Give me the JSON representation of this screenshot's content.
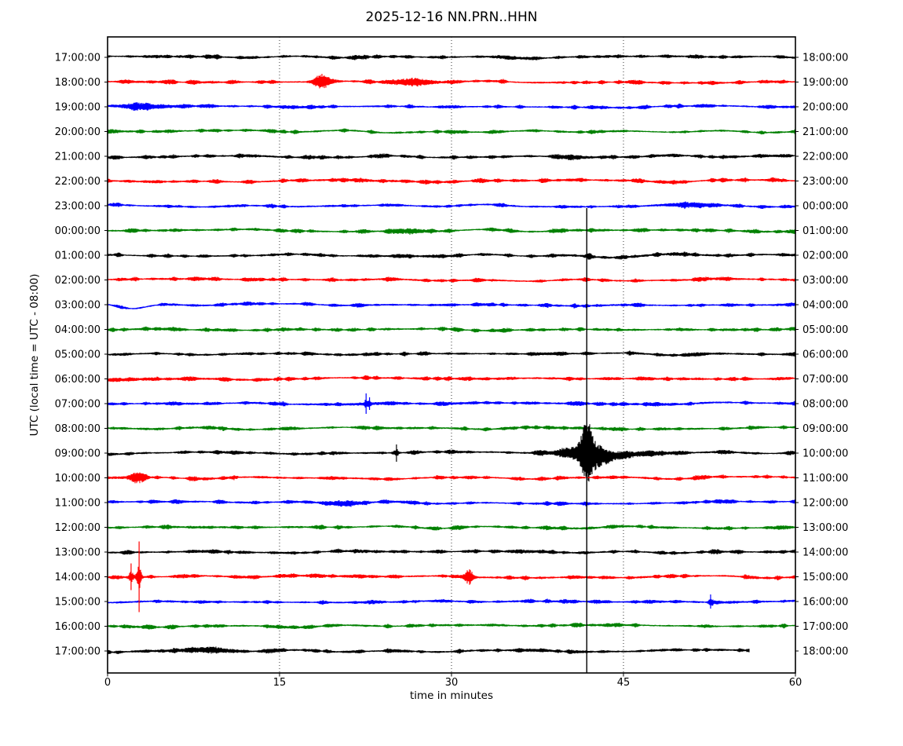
{
  "chart_data": {
    "type": "helicorder",
    "title": "2025-12-16 NN.PRN..HHN",
    "date": "2025-12-16",
    "station_id": "NN.PRN..HHN",
    "xlabel": "time in minutes",
    "ylabel": "UTC (local time = UTC - 08:00)",
    "x_range_minutes": [
      0,
      60
    ],
    "x_ticks": [
      0,
      15,
      30,
      45,
      60
    ],
    "grid_minutes": [
      15,
      30,
      45
    ],
    "color_cycle": [
      "#000000",
      "#ff0000",
      "#0000ff",
      "#008000"
    ],
    "traces": [
      {
        "left_label": "17:00:00",
        "right_label": "18:00:00",
        "color": "#000000"
      },
      {
        "left_label": "18:00:00",
        "right_label": "19:00:00",
        "color": "#ff0000"
      },
      {
        "left_label": "19:00:00",
        "right_label": "20:00:00",
        "color": "#0000ff"
      },
      {
        "left_label": "20:00:00",
        "right_label": "21:00:00",
        "color": "#008000"
      },
      {
        "left_label": "21:00:00",
        "right_label": "22:00:00",
        "color": "#000000"
      },
      {
        "left_label": "22:00:00",
        "right_label": "23:00:00",
        "color": "#ff0000"
      },
      {
        "left_label": "23:00:00",
        "right_label": "00:00:00",
        "color": "#0000ff"
      },
      {
        "left_label": "00:00:00",
        "right_label": "01:00:00",
        "color": "#008000"
      },
      {
        "left_label": "01:00:00",
        "right_label": "02:00:00",
        "color": "#000000"
      },
      {
        "left_label": "02:00:00",
        "right_label": "03:00:00",
        "color": "#ff0000"
      },
      {
        "left_label": "03:00:00",
        "right_label": "04:00:00",
        "color": "#0000ff"
      },
      {
        "left_label": "04:00:00",
        "right_label": "05:00:00",
        "color": "#008000"
      },
      {
        "left_label": "05:00:00",
        "right_label": "06:00:00",
        "color": "#000000"
      },
      {
        "left_label": "06:00:00",
        "right_label": "07:00:00",
        "color": "#ff0000"
      },
      {
        "left_label": "07:00:00",
        "right_label": "08:00:00",
        "color": "#0000ff"
      },
      {
        "left_label": "08:00:00",
        "right_label": "09:00:00",
        "color": "#008000"
      },
      {
        "left_label": "09:00:00",
        "right_label": "10:00:00",
        "color": "#000000"
      },
      {
        "left_label": "10:00:00",
        "right_label": "11:00:00",
        "color": "#ff0000"
      },
      {
        "left_label": "11:00:00",
        "right_label": "12:00:00",
        "color": "#0000ff"
      },
      {
        "left_label": "12:00:00",
        "right_label": "13:00:00",
        "color": "#008000"
      },
      {
        "left_label": "13:00:00",
        "right_label": "14:00:00",
        "color": "#000000"
      },
      {
        "left_label": "14:00:00",
        "right_label": "15:00:00",
        "color": "#ff0000"
      },
      {
        "left_label": "15:00:00",
        "right_label": "16:00:00",
        "color": "#0000ff"
      },
      {
        "left_label": "16:00:00",
        "right_label": "17:00:00",
        "color": "#008000"
      },
      {
        "left_label": "17:00:00",
        "right_label": "18:00:00",
        "color": "#000000",
        "end_minute": 56
      }
    ],
    "events": [
      {
        "trace": 1,
        "minute": 18.7,
        "type": "burst",
        "amp": 8,
        "width": 0.45
      },
      {
        "trace": 1,
        "minute": 26.9,
        "type": "burst",
        "amp": 3.5,
        "width": 1.3
      },
      {
        "trace": 2,
        "minute": 2.9,
        "type": "burst",
        "amp": 3,
        "width": 1.4
      },
      {
        "trace": 4,
        "minute": 40.6,
        "type": "burst",
        "amp": 2,
        "width": 0.8
      },
      {
        "trace": 6,
        "minute": 50.9,
        "type": "burst",
        "amp": 2.2,
        "width": 1.6
      },
      {
        "trace": 7,
        "minute": 26.5,
        "type": "burst",
        "amp": 2.2,
        "width": 1.2
      },
      {
        "trace": 8,
        "minute": 42.0,
        "type": "burst",
        "amp": 2.5,
        "width": 0.3
      },
      {
        "trace": 8,
        "minute": 43.5,
        "type": "baseline-dip",
        "amp": 3.5,
        "width": 2.2
      },
      {
        "trace": 10,
        "minute": 2.1,
        "type": "baseline-dip",
        "amp": 6,
        "width": 1.2
      },
      {
        "trace": 14,
        "minute": 22.55,
        "type": "spike",
        "amp": 13,
        "width": 0.12
      },
      {
        "trace": 14,
        "minute": 22.85,
        "type": "spike",
        "amp": 8,
        "width": 0.1
      },
      {
        "trace": 16,
        "minute": 25.2,
        "type": "spike",
        "amp": 11,
        "width": 0.12
      },
      {
        "trace": 16,
        "minute": 41.8,
        "type": "major-event",
        "amp": 26,
        "width": 0.35,
        "clip_up": 312,
        "clip_down": 280
      },
      {
        "trace": 17,
        "minute": 2.6,
        "type": "burst",
        "amp": 7,
        "width": 0.5
      },
      {
        "trace": 18,
        "minute": 21.0,
        "type": "burst",
        "amp": 2.5,
        "width": 1.0
      },
      {
        "trace": 21,
        "minute": 2.05,
        "type": "spike",
        "amp": 17,
        "width": 0.1
      },
      {
        "trace": 21,
        "minute": 2.75,
        "type": "spike",
        "amp": 45,
        "width": 0.1
      },
      {
        "trace": 21,
        "minute": 31.5,
        "type": "burst",
        "amp": 8,
        "width": 0.3
      },
      {
        "trace": 22,
        "minute": 52.6,
        "type": "spike",
        "amp": 9,
        "width": 0.15
      },
      {
        "trace": 24,
        "minute": 8.0,
        "type": "burst",
        "amp": 2,
        "width": 2.0
      }
    ]
  }
}
